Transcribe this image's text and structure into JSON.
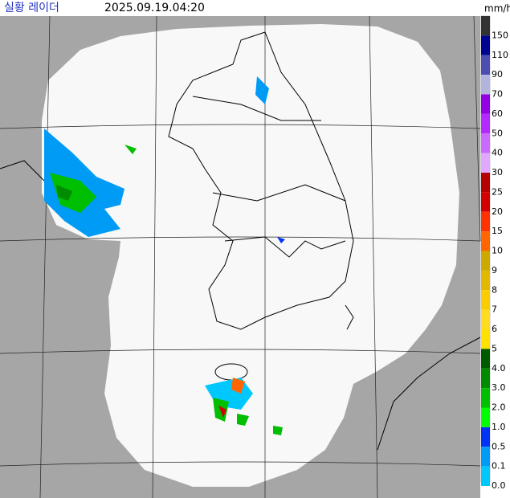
{
  "header": {
    "title": "실황 레이더",
    "time": "2025.09.19.04:20",
    "unit": "mm/h"
  },
  "legend": {
    "items": [
      {
        "label": "150",
        "color": "#333333"
      },
      {
        "label": "110",
        "color": "#000390"
      },
      {
        "label": "90",
        "color": "#4c4eb1"
      },
      {
        "label": "70",
        "color": "#b3b4de"
      },
      {
        "label": "60",
        "color": "#9300e4"
      },
      {
        "label": "50",
        "color": "#b329ff"
      },
      {
        "label": "40",
        "color": "#c969ff"
      },
      {
        "label": "30",
        "color": "#e0a9ff"
      },
      {
        "label": "25",
        "color": "#b40000"
      },
      {
        "label": "20",
        "color": "#d20000"
      },
      {
        "label": "15",
        "color": "#ff3200"
      },
      {
        "label": "10",
        "color": "#ff6600"
      },
      {
        "label": "9",
        "color": "#ccaa00"
      },
      {
        "label": "8",
        "color": "#e0b900"
      },
      {
        "label": "7",
        "color": "#f9cd00"
      },
      {
        "label": "6",
        "color": "#ffdc1f"
      },
      {
        "label": "5",
        "color": "#ffe100"
      },
      {
        "label": "4.0",
        "color": "#005a00"
      },
      {
        "label": "3.0",
        "color": "#008c00"
      },
      {
        "label": "2.0",
        "color": "#00be00"
      },
      {
        "label": "1.0",
        "color": "#00ff00"
      },
      {
        "label": "0.5",
        "color": "#0033f5"
      },
      {
        "label": "0.1",
        "color": "#009bf5"
      },
      {
        "label": "0.0",
        "color": "#00c8ff"
      }
    ]
  }
}
